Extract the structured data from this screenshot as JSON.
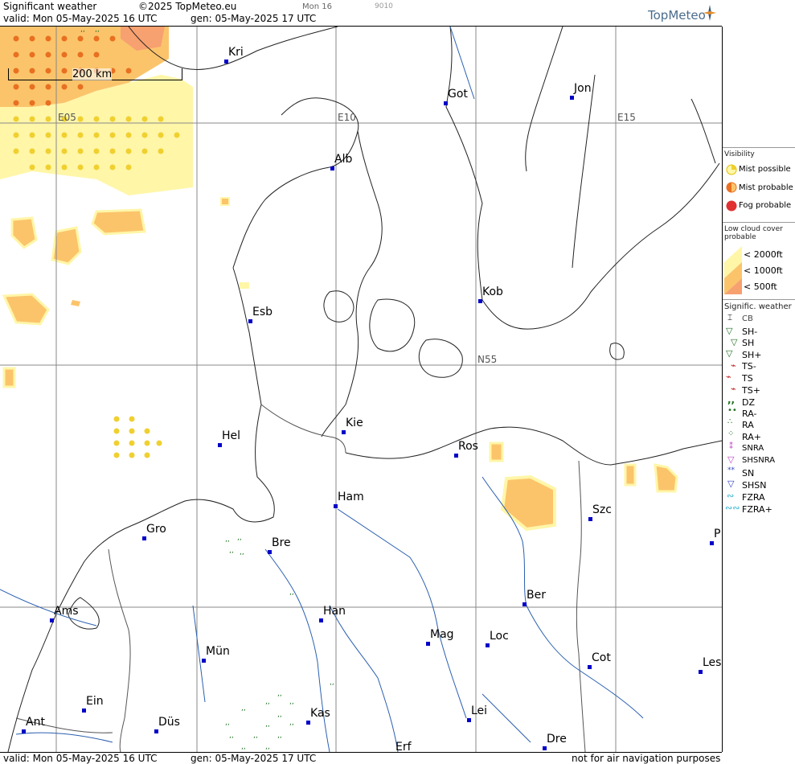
{
  "header": {
    "title": "Significant weather",
    "copyright": "©2025 TopMeteo.eu",
    "run": "Mon 16",
    "code": "9010",
    "valid": "valid:  Mon  05-May-2025  16 UTC",
    "gen": "gen: 05-May-2025 17 UTC"
  },
  "logo": "TopMeteo",
  "scale": "200 km",
  "grid_labels": {
    "e05": "E05",
    "e10": "E10",
    "e15": "E15",
    "n55": "N55"
  },
  "cities": [
    {
      "name": "Kri"
    },
    {
      "name": "Got"
    },
    {
      "name": "Jon"
    },
    {
      "name": "Alb"
    },
    {
      "name": "Kob"
    },
    {
      "name": "Esb"
    },
    {
      "name": "Kie"
    },
    {
      "name": "Hel"
    },
    {
      "name": "Ros"
    },
    {
      "name": "Ham"
    },
    {
      "name": "Szc"
    },
    {
      "name": "Gro"
    },
    {
      "name": "Bre"
    },
    {
      "name": "P"
    },
    {
      "name": "Ber"
    },
    {
      "name": "Ams"
    },
    {
      "name": "Han"
    },
    {
      "name": "Mag"
    },
    {
      "name": "Loc"
    },
    {
      "name": "Mün"
    },
    {
      "name": "Cot"
    },
    {
      "name": "Les"
    },
    {
      "name": "Ein"
    },
    {
      "name": "Kas"
    },
    {
      "name": "Lei"
    },
    {
      "name": "Ant"
    },
    {
      "name": "Düs"
    },
    {
      "name": "Dre"
    },
    {
      "name": "Erf"
    }
  ],
  "legend": {
    "visibility_title": "Visibility",
    "visibility": [
      "Mist possible",
      "Mist probable",
      "Fog probable"
    ],
    "lowcloud_title": "Low cloud cover probable",
    "lowcloud": [
      "< 2000ft",
      "< 1000ft",
      "<   500ft"
    ],
    "sigwx_title": "Signific. weather",
    "sigwx": [
      "CB",
      "SH-",
      "SH",
      "SH+",
      "TS-",
      "TS",
      "TS+",
      "DZ",
      "RA-",
      "RA",
      "RA+",
      "SNRA",
      "SHSNRA",
      "SN",
      "SHSN",
      "FZRA",
      "FZRA+"
    ]
  },
  "footer": {
    "valid": "valid:  Mon  05-May-2025  16 UTC",
    "gen": "gen: 05-May-2025 17 UTC",
    "note": "not for air navigation purposes"
  },
  "colors": {
    "cloud_2000": "#fff6a8",
    "cloud_1000": "#fbc46b",
    "cloud_500": "#f7a070",
    "city_point": "#0000c8",
    "river": "#2a5fb0",
    "grid": "#888888",
    "drizzle": "#207020"
  }
}
